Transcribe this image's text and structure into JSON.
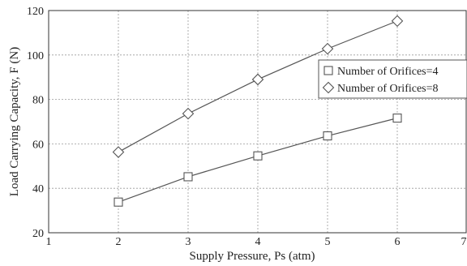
{
  "chart_data": {
    "type": "line",
    "xlabel": "Supply Pressure, Ps (atm)",
    "ylabel": "Load Carrying Capacity, F (N)",
    "xlim": [
      1,
      7
    ],
    "ylim": [
      20,
      120
    ],
    "xticks": [
      1,
      2,
      3,
      4,
      5,
      6,
      7
    ],
    "yticks": [
      20,
      40,
      60,
      80,
      100,
      120
    ],
    "xtick_labels": [
      "1",
      "2",
      "3",
      "4",
      "5",
      "6",
      "7"
    ],
    "ytick_labels": [
      "20",
      "40",
      "60",
      "80",
      "100",
      "120"
    ],
    "grid": true,
    "legend_position": "right",
    "series": [
      {
        "name": "Number of Orifices=4",
        "marker": "square",
        "color": "#555555",
        "x": [
          2,
          3,
          4,
          5,
          6
        ],
        "values": [
          33.8,
          45.2,
          54.6,
          63.6,
          71.6
        ]
      },
      {
        "name": "Number of Orifices=8",
        "marker": "diamond",
        "color": "#555555",
        "x": [
          2,
          3,
          4,
          5,
          6
        ],
        "values": [
          56.3,
          73.6,
          89.0,
          102.8,
          115.3
        ]
      }
    ]
  }
}
